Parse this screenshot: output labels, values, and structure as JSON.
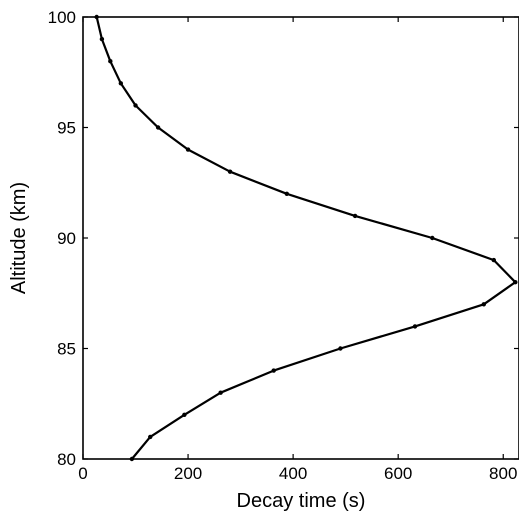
{
  "chart_data": {
    "type": "line",
    "title": "",
    "xlabel": "Decay time (s)",
    "ylabel": "Altitude (km)",
    "xlim": [
      0,
      830
    ],
    "ylim": [
      80,
      100
    ],
    "xticks": [
      0,
      200,
      400,
      600,
      800
    ],
    "yticks": [
      80,
      85,
      90,
      95,
      100
    ],
    "grid": false,
    "series": [
      {
        "color": "#000000",
        "marker": "dot",
        "points": [
          {
            "x": 93,
            "y": 80
          },
          {
            "x": 128,
            "y": 81
          },
          {
            "x": 193,
            "y": 82
          },
          {
            "x": 262,
            "y": 83
          },
          {
            "x": 363,
            "y": 84
          },
          {
            "x": 490,
            "y": 85
          },
          {
            "x": 632,
            "y": 86
          },
          {
            "x": 763,
            "y": 87
          },
          {
            "x": 823,
            "y": 88
          },
          {
            "x": 782,
            "y": 89
          },
          {
            "x": 665,
            "y": 90
          },
          {
            "x": 518,
            "y": 91
          },
          {
            "x": 388,
            "y": 92
          },
          {
            "x": 280,
            "y": 93
          },
          {
            "x": 200,
            "y": 94
          },
          {
            "x": 143,
            "y": 95
          },
          {
            "x": 100,
            "y": 96
          },
          {
            "x": 72,
            "y": 97
          },
          {
            "x": 52,
            "y": 98
          },
          {
            "x": 36,
            "y": 99
          },
          {
            "x": 26,
            "y": 100
          }
        ]
      }
    ]
  }
}
